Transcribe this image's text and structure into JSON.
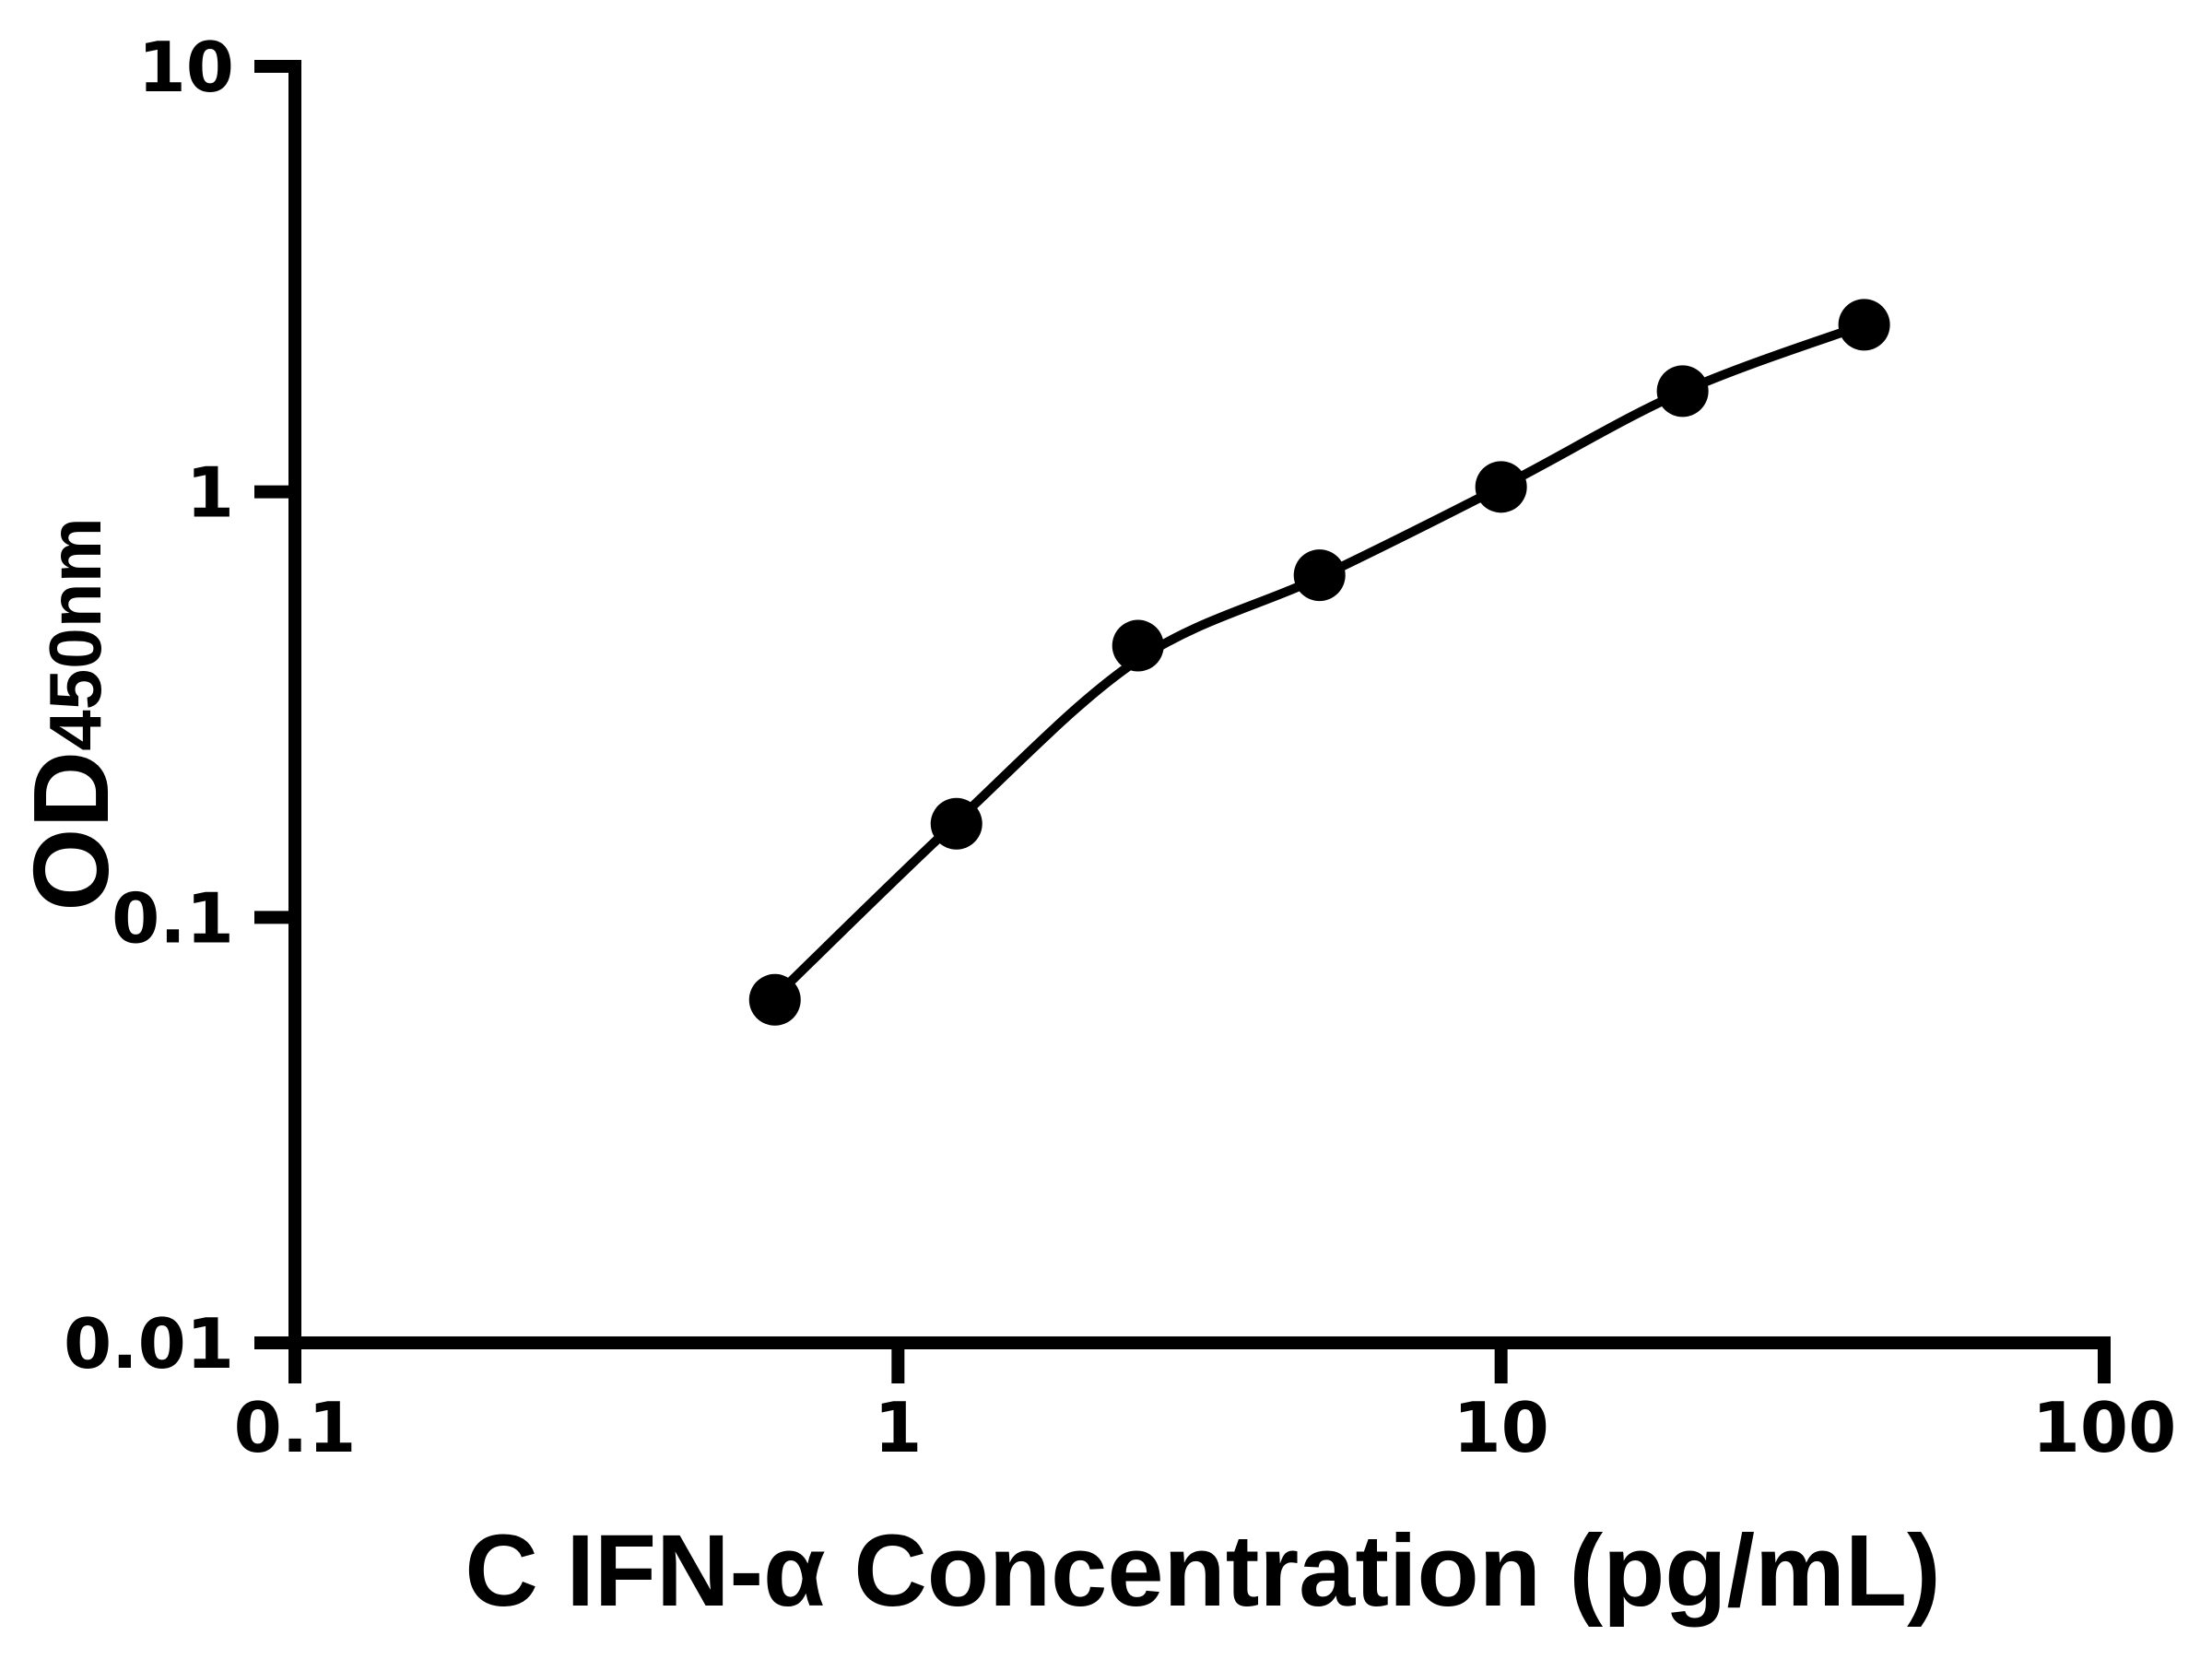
{
  "figure": {
    "background": "#ffffff",
    "ink_color": "#000000"
  },
  "chart_data": {
    "type": "scatter",
    "title": "",
    "xlabel": "C IFN-α Concentration (pg/mL)",
    "ylabel_main": "OD",
    "ylabel_sub": "450nm",
    "x_scale": "log",
    "y_scale": "log",
    "xlim": [
      0.1,
      100
    ],
    "ylim": [
      0.01,
      10
    ],
    "grid": false,
    "legend_position": "none",
    "x_ticks": [
      {
        "value": 0.1,
        "label": "0.1"
      },
      {
        "value": 1,
        "label": "1"
      },
      {
        "value": 10,
        "label": "10"
      },
      {
        "value": 100,
        "label": "100"
      }
    ],
    "y_ticks": [
      {
        "value": 0.01,
        "label": "0.01"
      },
      {
        "value": 0.1,
        "label": "0.1"
      },
      {
        "value": 1,
        "label": "1"
      },
      {
        "value": 10,
        "label": "10"
      }
    ],
    "series": [
      {
        "name": "standard-curve-points",
        "marker": "filled-circle",
        "color": "#000000",
        "points": [
          {
            "x": 0.625,
            "y": 0.064
          },
          {
            "x": 1.25,
            "y": 0.166
          },
          {
            "x": 2.5,
            "y": 0.435
          },
          {
            "x": 5,
            "y": 0.637
          },
          {
            "x": 10,
            "y": 1.027
          },
          {
            "x": 20,
            "y": 1.725
          },
          {
            "x": 40,
            "y": 2.47
          }
        ]
      }
    ],
    "fit_curve": {
      "name": "fitted-curve",
      "color": "#000000",
      "points": [
        {
          "x": 0.625,
          "y": 0.065
        },
        {
          "x": 1.25,
          "y": 0.168
        },
        {
          "x": 2.5,
          "y": 0.403
        },
        {
          "x": 5,
          "y": 0.63
        },
        {
          "x": 10,
          "y": 1.027
        },
        {
          "x": 20,
          "y": 1.72
        },
        {
          "x": 40,
          "y": 2.47
        }
      ]
    }
  }
}
